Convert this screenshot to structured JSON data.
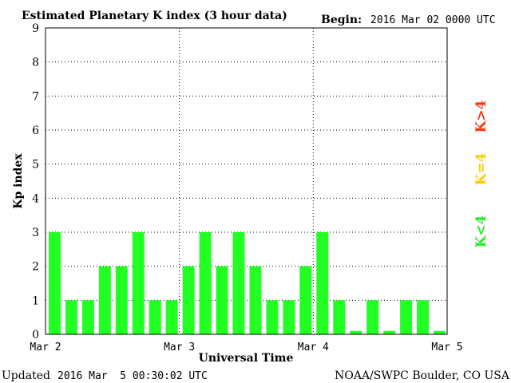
{
  "title": "Estimated Planetary K index (3 hour data)",
  "begin_label": "Begin:",
  "begin_value": "2016 Mar 02 0000 UTC",
  "footer_updated_label": "Updated",
  "footer_updated_value": "2016 Mar  5 00:30:02 UTC",
  "footer_source": "NOAA/SWPC Boulder, CO USA",
  "legend": [
    {
      "label": "K<4",
      "color": "#22ee22"
    },
    {
      "label": "K=4",
      "color": "#ffcc00"
    },
    {
      "label": "K>4",
      "color": "#ff3311"
    }
  ],
  "chart_data": {
    "type": "bar",
    "title": "Estimated Planetary K index (3 hour data)",
    "xlabel": "Universal Time",
    "ylabel": "Kp index",
    "ylim": [
      0,
      9
    ],
    "yticks": [
      "0",
      "1",
      "2",
      "3",
      "4",
      "5",
      "6",
      "7",
      "8",
      "9"
    ],
    "xticks": [
      "Mar 2",
      "Mar 3",
      "Mar 4",
      "Mar 5"
    ],
    "grid": "dotted",
    "categories": [
      "Mar 2 00",
      "Mar 2 03",
      "Mar 2 06",
      "Mar 2 09",
      "Mar 2 12",
      "Mar 2 15",
      "Mar 2 18",
      "Mar 2 21",
      "Mar 3 00",
      "Mar 3 03",
      "Mar 3 06",
      "Mar 3 09",
      "Mar 3 12",
      "Mar 3 15",
      "Mar 3 18",
      "Mar 3 21",
      "Mar 4 00",
      "Mar 4 03",
      "Mar 4 06",
      "Mar 4 09",
      "Mar 4 12",
      "Mar 4 15",
      "Mar 4 18",
      "Mar 4 21"
    ],
    "values": [
      3,
      1,
      1,
      2,
      2,
      3,
      1,
      1,
      2,
      3,
      2,
      3,
      2,
      1,
      1,
      2,
      3,
      1,
      0.1,
      1,
      0.1,
      1,
      1,
      0.1
    ],
    "bar_color": "#22ff22"
  }
}
